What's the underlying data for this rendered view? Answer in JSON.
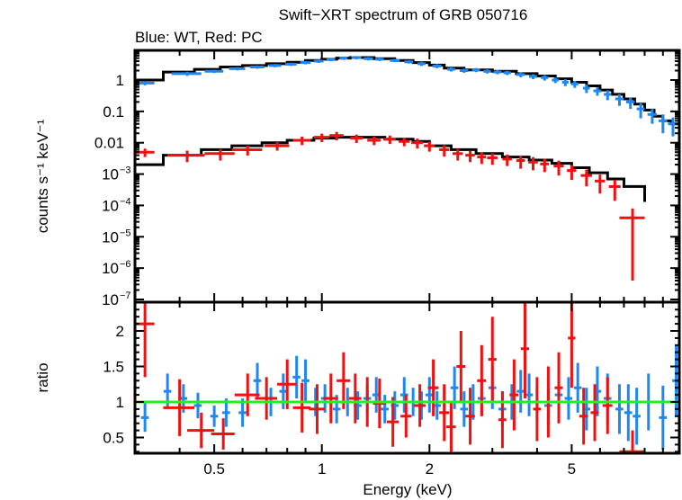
{
  "chart_data": [
    {
      "type": "scatter",
      "panel": "spectrum",
      "title": "Swift−XRT spectrum of GRB 050716",
      "subtitle": "Blue: WT, Red: PC",
      "xlabel": "Energy (keV)",
      "ylabel": "counts s⁻¹ keV⁻¹",
      "xscale": "log",
      "yscale": "log",
      "xlim": [
        0.3,
        10
      ],
      "ylim": [
        1e-07,
        8
      ],
      "ytick_labels": [
        {
          "value": 1,
          "base": "1",
          "exp": ""
        },
        {
          "value": 0.1,
          "base": "0.1",
          "exp": ""
        },
        {
          "value": 0.01,
          "base": "0.01",
          "exp": ""
        },
        {
          "value": 0.001,
          "base": "10",
          "exp": "−3"
        },
        {
          "value": 0.0001,
          "base": "10",
          "exp": "−4"
        },
        {
          "value": 1e-05,
          "base": "10",
          "exp": "−5"
        },
        {
          "value": 1e-06,
          "base": "10",
          "exp": "−6"
        },
        {
          "value": 1e-07,
          "base": "10",
          "exp": "−7"
        }
      ],
      "series": [
        {
          "name": "WT",
          "color": "#1e88f0",
          "x": [
            0.32,
            0.42,
            0.5,
            0.58,
            0.66,
            0.74,
            0.82,
            0.9,
            0.98,
            1.06,
            1.15,
            1.25,
            1.35,
            1.45,
            1.6,
            1.75,
            1.9,
            2.1,
            2.3,
            2.5,
            2.7,
            2.9,
            3.1,
            3.3,
            3.6,
            3.9,
            4.2,
            4.5,
            4.8,
            5.1,
            5.5,
            5.9,
            6.3,
            6.8,
            7.3,
            7.8,
            8.4,
            9.0,
            9.6
          ],
          "y": [
            0.8,
            1.6,
            1.9,
            2.3,
            2.6,
            2.9,
            3.2,
            3.6,
            4.0,
            4.5,
            5.0,
            5.2,
            4.8,
            4.6,
            4.2,
            3.8,
            3.3,
            2.8,
            2.2,
            2.0,
            2.1,
            1.9,
            1.8,
            1.7,
            1.5,
            1.3,
            1.2,
            1.0,
            0.85,
            0.75,
            0.55,
            0.45,
            0.35,
            0.25,
            0.2,
            0.12,
            0.08,
            0.05,
            0.04
          ],
          "xerr": [
            0.02,
            0.04,
            0.03,
            0.03,
            0.03,
            0.03,
            0.03,
            0.03,
            0.03,
            0.03,
            0.03,
            0.04,
            0.04,
            0.04,
            0.05,
            0.05,
            0.05,
            0.06,
            0.06,
            0.07,
            0.07,
            0.07,
            0.08,
            0.08,
            0.1,
            0.1,
            0.1,
            0.1,
            0.1,
            0.12,
            0.12,
            0.15,
            0.15,
            0.18,
            0.2,
            0.2,
            0.25,
            0.25,
            0.3
          ],
          "yerr_rel": [
            0.15,
            0.15,
            0.12,
            0.12,
            0.12,
            0.12,
            0.12,
            0.12,
            0.12,
            0.12,
            0.12,
            0.12,
            0.12,
            0.12,
            0.12,
            0.12,
            0.15,
            0.15,
            0.15,
            0.15,
            0.15,
            0.15,
            0.15,
            0.15,
            0.18,
            0.18,
            0.2,
            0.2,
            0.25,
            0.25,
            0.3,
            0.3,
            0.35,
            0.4,
            0.4,
            0.5,
            0.5,
            0.6,
            0.6
          ]
        },
        {
          "name": "PC",
          "color": "#f01010",
          "x": [
            0.32,
            0.42,
            0.52,
            0.62,
            0.75,
            0.88,
            1.0,
            1.1,
            1.25,
            1.4,
            1.55,
            1.7,
            1.85,
            2.0,
            2.2,
            2.4,
            2.6,
            2.8,
            3.0,
            3.3,
            3.6,
            3.9,
            4.2,
            4.6,
            5.0,
            5.5,
            6.0,
            6.6,
            7.4
          ],
          "y": [
            0.005,
            0.004,
            0.0045,
            0.006,
            0.008,
            0.012,
            0.015,
            0.017,
            0.014,
            0.012,
            0.013,
            0.011,
            0.01,
            0.008,
            0.006,
            0.0045,
            0.004,
            0.0035,
            0.0033,
            0.003,
            0.0027,
            0.0024,
            0.0021,
            0.0018,
            0.0013,
            0.0009,
            0.0006,
            0.0004,
            4e-05
          ],
          "xerr": [
            0.02,
            0.05,
            0.05,
            0.06,
            0.06,
            0.05,
            0.05,
            0.05,
            0.05,
            0.06,
            0.06,
            0.06,
            0.07,
            0.07,
            0.07,
            0.08,
            0.08,
            0.08,
            0.1,
            0.1,
            0.1,
            0.12,
            0.12,
            0.15,
            0.15,
            0.2,
            0.2,
            0.25,
            0.6
          ],
          "yerr_rel": [
            0.3,
            0.4,
            0.4,
            0.35,
            0.3,
            0.3,
            0.3,
            0.3,
            0.3,
            0.3,
            0.3,
            0.3,
            0.35,
            0.35,
            0.4,
            0.4,
            0.4,
            0.4,
            0.4,
            0.4,
            0.45,
            0.45,
            0.45,
            0.5,
            0.5,
            0.55,
            0.6,
            0.65,
            0.99
          ]
        }
      ],
      "models": [
        {
          "name": "WT model",
          "color": "#000000",
          "x_edges": [
            0.3,
            0.36,
            0.44,
            0.52,
            0.6,
            0.7,
            0.8,
            0.9,
            1.0,
            1.1,
            1.2,
            1.4,
            1.6,
            1.8,
            2.0,
            2.2,
            2.5,
            3.0,
            3.5,
            4.0,
            4.5,
            5.0,
            5.5,
            6.0,
            6.5,
            7.0,
            7.5,
            8.0,
            8.5,
            9.0,
            9.5,
            10.0
          ],
          "y": [
            1.0,
            1.8,
            2.2,
            2.6,
            2.9,
            3.3,
            3.7,
            4.2,
            4.6,
            5.0,
            5.2,
            4.8,
            4.2,
            3.6,
            3.0,
            2.4,
            2.1,
            1.9,
            1.6,
            1.35,
            1.1,
            0.85,
            0.65,
            0.48,
            0.35,
            0.25,
            0.17,
            0.11,
            0.07,
            0.05,
            0.04
          ]
        },
        {
          "name": "PC model",
          "color": "#000000",
          "x_edges": [
            0.3,
            0.36,
            0.46,
            0.56,
            0.68,
            0.8,
            0.95,
            1.1,
            1.3,
            1.5,
            1.8,
            2.0,
            2.3,
            2.7,
            3.2,
            3.8,
            4.4,
            5.0,
            5.6,
            6.3,
            7.0,
            8.0
          ],
          "y": [
            0.002,
            0.004,
            0.006,
            0.008,
            0.01,
            0.012,
            0.014,
            0.015,
            0.015,
            0.013,
            0.011,
            0.008,
            0.006,
            0.0045,
            0.0035,
            0.0028,
            0.0022,
            0.0016,
            0.0011,
            0.0007,
            0.0004,
            0.00013
          ]
        }
      ]
    },
    {
      "type": "scatter",
      "panel": "ratio",
      "xlabel": "Energy (keV)",
      "ylabel": "ratio",
      "xscale": "log",
      "yscale": "linear",
      "xlim": [
        0.3,
        10
      ],
      "ylim": [
        0.25,
        2.4
      ],
      "ytick_labels": [
        "0.5",
        "1",
        "1.5",
        "2"
      ],
      "ytick_values": [
        0.5,
        1,
        1.5,
        2
      ],
      "xtick_labels": [
        "0.5",
        "1",
        "2",
        "5"
      ],
      "xtick_values": [
        0.5,
        1,
        2,
        5
      ],
      "reference_line": {
        "y": 1,
        "color": "#22ee22"
      },
      "series": [
        {
          "name": "WT",
          "color": "#1e88f0",
          "x": [
            0.32,
            0.37,
            0.41,
            0.45,
            0.5,
            0.54,
            0.6,
            0.66,
            0.72,
            0.78,
            0.85,
            0.9,
            0.96,
            1.02,
            1.1,
            1.18,
            1.26,
            1.34,
            1.42,
            1.5,
            1.6,
            1.7,
            1.8,
            1.9,
            2.0,
            2.1,
            2.2,
            2.35,
            2.5,
            2.65,
            2.8,
            3.0,
            3.2,
            3.4,
            3.6,
            3.8,
            4.0,
            4.3,
            4.6,
            4.9,
            5.2,
            5.5,
            5.9,
            6.3,
            6.8,
            7.2,
            7.6,
            8.2,
            9.0,
            9.8
          ],
          "y": [
            0.78,
            1.15,
            1.05,
            0.95,
            0.8,
            0.85,
            0.85,
            1.3,
            1.0,
            1.15,
            1.35,
            1.3,
            1.0,
            1.05,
            0.9,
            1.0,
            0.95,
            1.05,
            1.1,
            0.9,
            0.95,
            1.1,
            1.0,
            0.95,
            1.1,
            0.95,
            1.0,
            1.2,
            0.9,
            1.0,
            1.05,
            1.2,
            0.9,
            1.0,
            1.15,
            1.1,
            1.0,
            0.95,
            1.1,
            1.05,
            1.2,
            0.9,
            1.15,
            1.05,
            0.9,
            0.85,
            0.8,
            1.0,
            0.78,
            1.3
          ],
          "yerr": [
            0.2,
            0.25,
            0.2,
            0.18,
            0.15,
            0.2,
            0.2,
            0.25,
            0.2,
            0.25,
            0.3,
            0.3,
            0.2,
            0.2,
            0.2,
            0.2,
            0.2,
            0.2,
            0.25,
            0.2,
            0.2,
            0.25,
            0.2,
            0.2,
            0.25,
            0.2,
            0.2,
            0.3,
            0.25,
            0.25,
            0.25,
            0.3,
            0.25,
            0.25,
            0.3,
            0.3,
            0.25,
            0.25,
            0.3,
            0.3,
            0.35,
            0.3,
            0.35,
            0.35,
            0.35,
            0.4,
            0.4,
            0.4,
            0.45,
            0.5
          ]
        },
        {
          "name": "PC",
          "color": "#f01010",
          "x": [
            0.32,
            0.4,
            0.46,
            0.53,
            0.62,
            0.7,
            0.8,
            0.88,
            0.97,
            1.06,
            1.15,
            1.24,
            1.34,
            1.45,
            1.58,
            1.72,
            1.88,
            2.05,
            2.2,
            2.3,
            2.45,
            2.6,
            2.8,
            3.0,
            3.2,
            3.45,
            3.7,
            4.0,
            4.3,
            4.6,
            5.0,
            5.4,
            5.8,
            6.3,
            7.4
          ],
          "y": [
            2.1,
            0.92,
            0.6,
            0.55,
            1.1,
            1.05,
            1.25,
            0.92,
            0.9,
            1.05,
            1.3,
            1.05,
            1.0,
            0.98,
            0.72,
            0.8,
            0.95,
            1.2,
            0.85,
            0.65,
            1.5,
            0.8,
            1.3,
            1.6,
            0.75,
            1.1,
            1.75,
            0.9,
            1.0,
            1.2,
            1.9,
            0.8,
            0.85,
            0.95,
            0.3
          ],
          "yerr": [
            0.75,
            0.4,
            0.25,
            0.22,
            0.3,
            0.3,
            0.35,
            0.35,
            0.35,
            0.35,
            0.4,
            0.35,
            0.35,
            0.35,
            0.35,
            0.3,
            0.3,
            0.4,
            0.4,
            0.35,
            0.5,
            0.4,
            0.5,
            0.6,
            0.4,
            0.5,
            0.7,
            0.45,
            0.5,
            0.5,
            0.7,
            0.4,
            0.4,
            0.4,
            0.3
          ],
          "xerr": [
            0.02,
            0.04,
            0.04,
            0.04,
            0.05,
            0.05,
            0.05,
            0.05,
            0.05,
            0.05,
            0.05,
            0.05,
            0.05,
            0.06,
            0.06,
            0.06,
            0.07,
            0.07,
            0.07,
            0.07,
            0.07,
            0.08,
            0.08,
            0.08,
            0.08,
            0.1,
            0.1,
            0.1,
            0.1,
            0.12,
            0.12,
            0.15,
            0.15,
            0.2,
            0.6
          ]
        }
      ]
    }
  ]
}
